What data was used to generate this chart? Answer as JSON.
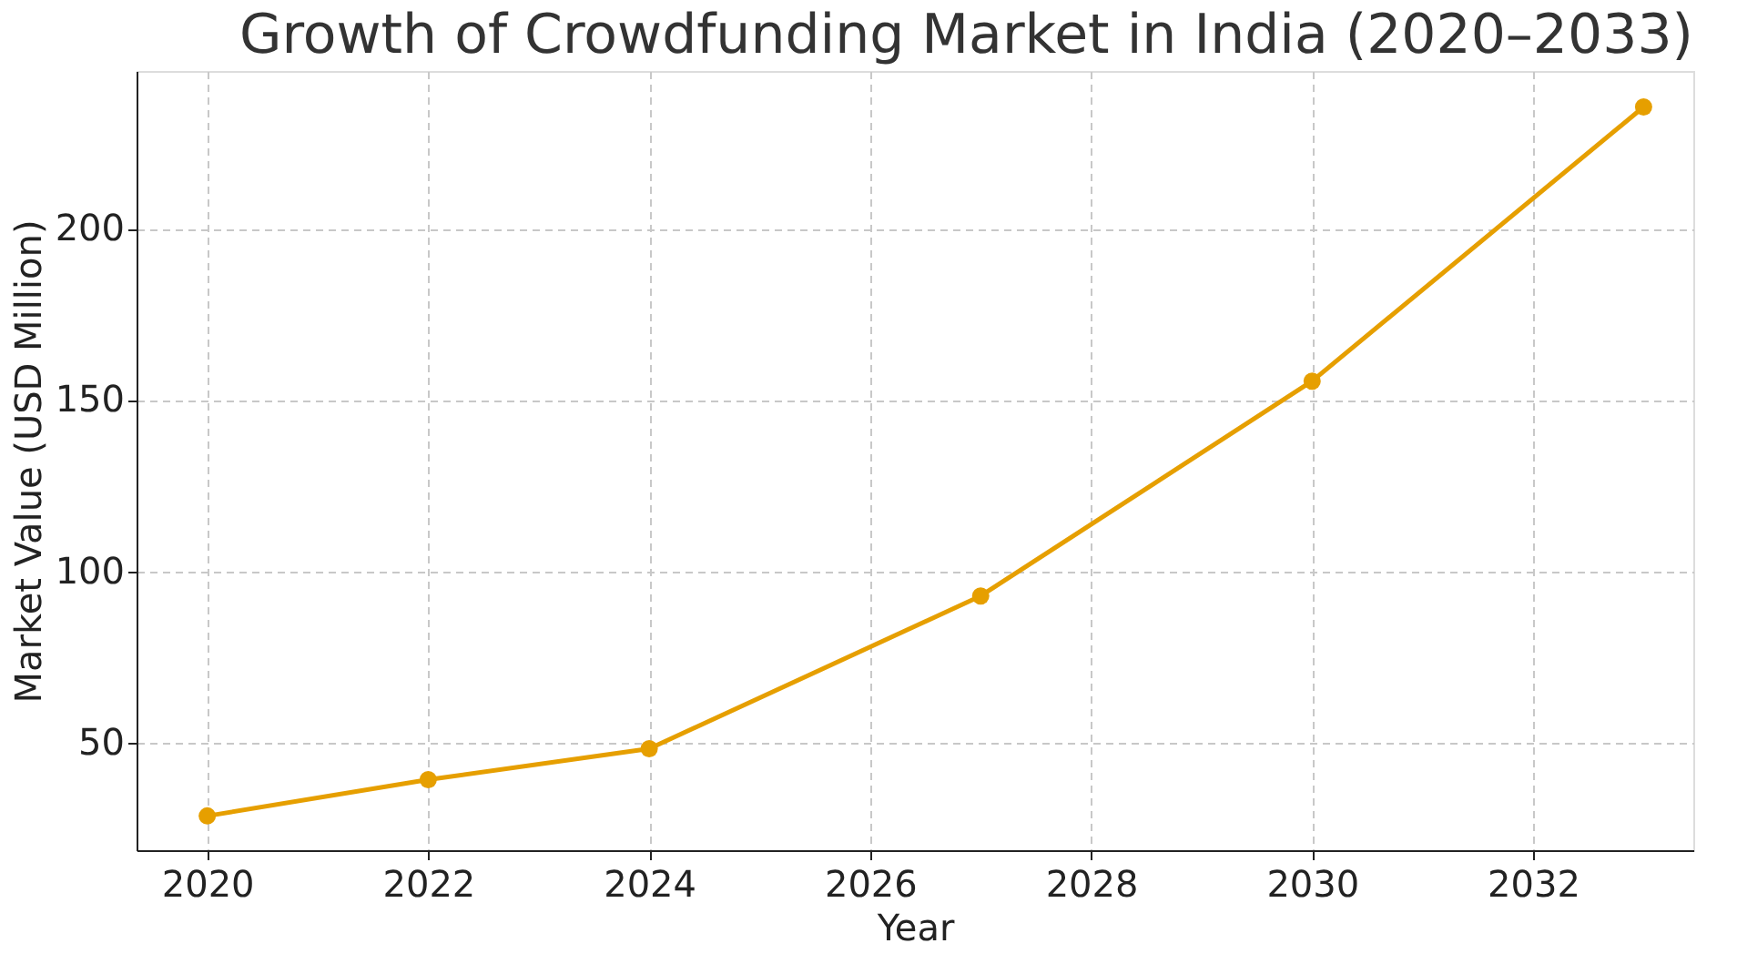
{
  "chart_data": {
    "type": "line",
    "title": "Growth of Crowdfunding Market in India (2020–2033)",
    "xlabel": "Year",
    "ylabel": "Market Value (USD Million)",
    "x": [
      2020,
      2022,
      2024,
      2027,
      2030,
      2033
    ],
    "series": [
      {
        "color": "#e69f00",
        "values": [
          28.6,
          39.2,
          48.2,
          92.8,
          155.5,
          235.5
        ]
      }
    ],
    "xlim": [
      2019.36,
      2033.45
    ],
    "xticks": [
      2020,
      2022,
      2024,
      2026,
      2028,
      2030,
      2032
    ],
    "ylim": [
      18.6,
      246
    ],
    "yticks": [
      50,
      100,
      150,
      200
    ],
    "grid": true,
    "marker": "circle",
    "line_style": "solid"
  }
}
